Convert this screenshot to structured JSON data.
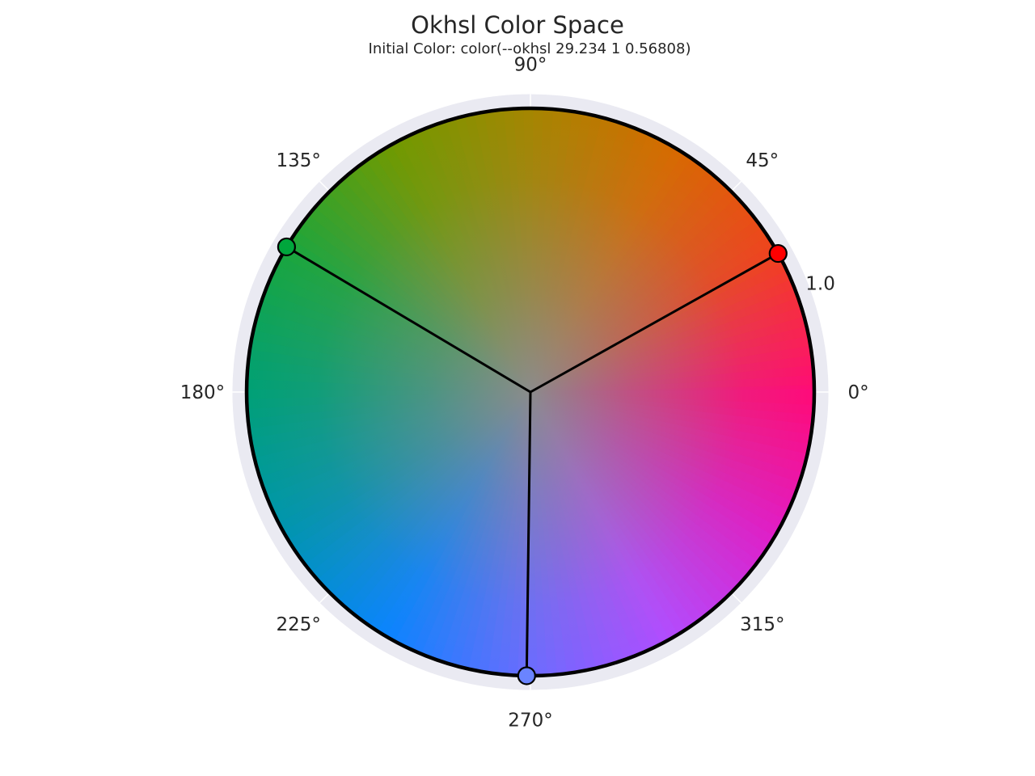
{
  "chart_data": {
    "type": "scatter",
    "title": "Okhsl Color Space",
    "subtitle": "Initial Color: color(--okhsl 29.234 1 0.56808)",
    "projection": "polar",
    "theta_unit": "degrees",
    "theta_tick_labels": [
      "0°",
      "45°",
      "90°",
      "135°",
      "180°",
      "225°",
      "270°",
      "315°"
    ],
    "theta_ticks": [
      0,
      45,
      90,
      135,
      180,
      225,
      270,
      315
    ],
    "r_tick_labels": [
      "1.0"
    ],
    "r_ticks": [
      1.0
    ],
    "rlim": [
      0,
      1.05
    ],
    "grid": true,
    "background": "#eaeaf2",
    "gradient_wheel": {
      "hue_offset_deg": 0,
      "center_color": "#8b8b8b",
      "rim_stops": [
        {
          "angle": 0,
          "color": "#ff0a78"
        },
        {
          "angle": 30,
          "color": "#f0421e"
        },
        {
          "angle": 60,
          "color": "#d76a00"
        },
        {
          "angle": 90,
          "color": "#a68500"
        },
        {
          "angle": 120,
          "color": "#6f9a00"
        },
        {
          "angle": 150,
          "color": "#1aa63c"
        },
        {
          "angle": 180,
          "color": "#00a075"
        },
        {
          "angle": 210,
          "color": "#0095b0"
        },
        {
          "angle": 240,
          "color": "#0a84ff"
        },
        {
          "angle": 270,
          "color": "#6a6cff"
        },
        {
          "angle": 300,
          "color": "#b24cff"
        },
        {
          "angle": 330,
          "color": "#e01ec8"
        },
        {
          "angle": 360,
          "color": "#ff0a78"
        }
      ]
    },
    "points": [
      {
        "theta": 29.234,
        "r": 1.0,
        "color": "#ff0000"
      },
      {
        "theta": 149.234,
        "r": 1.0,
        "color": "#00a63c"
      },
      {
        "theta": 269.234,
        "r": 1.0,
        "color": "#6a84ff"
      }
    ]
  }
}
